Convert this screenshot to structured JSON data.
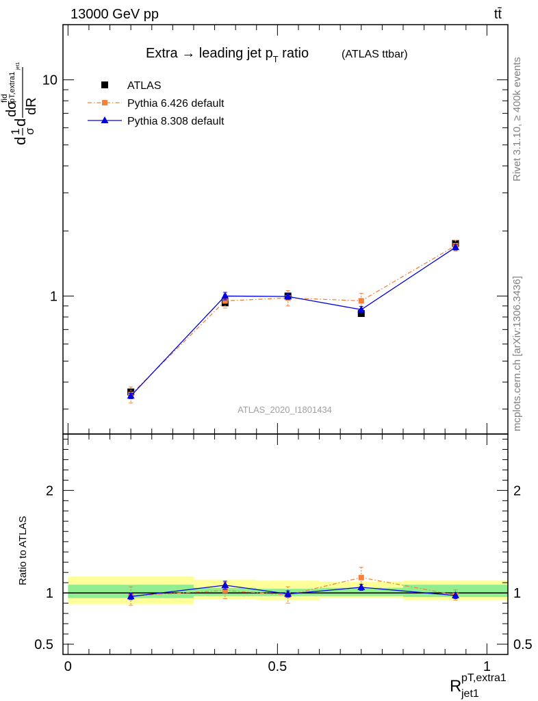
{
  "header": {
    "energy_label": "13000 GeV pp",
    "process_label": "tt̄"
  },
  "side_labels": {
    "rivet": "Rivet 3.1.10, ≥ 400k events",
    "source": "mcplots.cern.ch [arXiv:1306.3436]"
  },
  "chart_data": [
    {
      "type": "line",
      "panel": "main",
      "title_main": "Extra → leading jet p",
      "title_sub": "T",
      "title_after": " ratio",
      "title_small": "(ATLAS ttbar)",
      "analysis_label": "ATLAS_2020_I1801434",
      "ylabel_parts": [
        "d",
        "1",
        "σ",
        "d",
        "dσ",
        "fid",
        "pT,extra1",
        "jet1",
        "dR"
      ],
      "yscale": "log",
      "ylim": [
        0.23,
        18
      ],
      "xlim": [
        -0.012,
        1.05
      ],
      "y_tick_labels": [
        {
          "value": 1,
          "label": "1"
        },
        {
          "value": 10,
          "label": "10"
        }
      ],
      "legend": {
        "position": "top-left",
        "entries": [
          {
            "series": "ATLAS",
            "label": "ATLAS"
          },
          {
            "series": "Pythia 6.426 default",
            "label": "Pythia 6.426 default"
          },
          {
            "series": "Pythia 8.308 default",
            "label": "Pythia 8.308 default"
          }
        ]
      },
      "series": [
        {
          "name": "ATLAS",
          "style": "markers",
          "color": "#000000",
          "marker": "square",
          "x": [
            0.15,
            0.375,
            0.525,
            0.7,
            0.925
          ],
          "y": [
            0.36,
            0.93,
            1.0,
            0.83,
            1.75
          ],
          "yerr": [
            0.01,
            0.02,
            0.02,
            0.02,
            0.03
          ]
        },
        {
          "name": "Pythia 6.426 default",
          "style": "dashdot",
          "color": "#f5813a",
          "marker": "square",
          "x": [
            0.15,
            0.375,
            0.525,
            0.7,
            0.925
          ],
          "y": [
            0.35,
            0.95,
            0.98,
            0.95,
            1.71
          ],
          "yerr": [
            0.03,
            0.07,
            0.08,
            0.08,
            0.1
          ]
        },
        {
          "name": "Pythia 8.308 default",
          "style": "solid",
          "color": "#0000e0",
          "marker": "triangle",
          "x": [
            0.15,
            0.375,
            0.525,
            0.7,
            0.925
          ],
          "y": [
            0.345,
            1.0,
            0.995,
            0.865,
            1.68
          ],
          "yerr": [
            0.01,
            0.04,
            0.03,
            0.03,
            0.05
          ]
        }
      ]
    },
    {
      "type": "line",
      "panel": "ratio",
      "ylabel": "Ratio to ATLAS",
      "ylim": [
        0.4,
        2.55
      ],
      "xlim": [
        -0.012,
        1.05
      ],
      "xlabel_main": "R",
      "xlabel_sup": "pT,extra1",
      "xlabel_sub": "jet1",
      "x_tick_labels": [
        {
          "value": 0,
          "label": "0"
        },
        {
          "value": 0.5,
          "label": "0.5"
        },
        {
          "value": 1,
          "label": "1"
        }
      ],
      "y_tick_labels": [
        {
          "value": 0.5,
          "label": "0.5"
        },
        {
          "value": 1,
          "label": "1"
        },
        {
          "value": 2,
          "label": "2"
        }
      ],
      "bands": [
        {
          "x0": 0.0,
          "x1": 0.3,
          "yellow": [
            0.89,
            1.16
          ],
          "green": [
            0.95,
            1.08
          ]
        },
        {
          "x0": 0.3,
          "x1": 0.45,
          "yellow": [
            0.94,
            1.13
          ],
          "green": [
            0.97,
            1.05
          ]
        },
        {
          "x0": 0.45,
          "x1": 0.6,
          "yellow": [
            0.93,
            1.12
          ],
          "green": [
            0.97,
            1.04
          ]
        },
        {
          "x0": 0.6,
          "x1": 0.8,
          "yellow": [
            0.95,
            1.11
          ],
          "green": [
            0.97,
            1.05
          ]
        },
        {
          "x0": 0.8,
          "x1": 1.05,
          "yellow": [
            0.93,
            1.12
          ],
          "green": [
            0.96,
            1.08
          ]
        }
      ],
      "series": [
        {
          "name": "Pythia 6.426 default",
          "style": "dashdot",
          "color": "#f5813a",
          "marker": "square",
          "x": [
            0.15,
            0.375,
            0.525,
            0.7,
            0.925
          ],
          "y": [
            0.97,
            1.025,
            0.98,
            1.15,
            0.98
          ],
          "yerr": [
            0.09,
            0.08,
            0.08,
            0.1,
            0.05
          ]
        },
        {
          "name": "Pythia 8.308 default",
          "style": "solid",
          "color": "#0000e0",
          "marker": "triangle",
          "x": [
            0.15,
            0.375,
            0.525,
            0.7,
            0.925
          ],
          "y": [
            0.965,
            1.075,
            0.99,
            1.055,
            0.975
          ],
          "yerr": [
            0.03,
            0.04,
            0.03,
            0.03,
            0.03
          ]
        }
      ]
    }
  ]
}
